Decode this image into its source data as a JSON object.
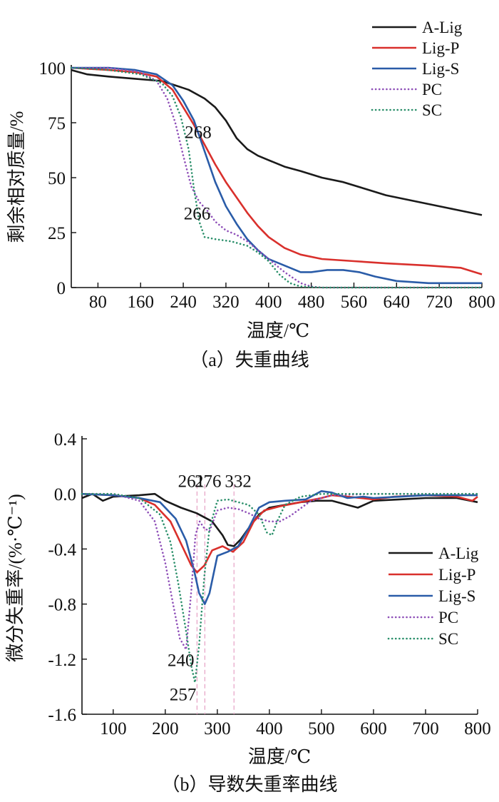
{
  "colors": {
    "A-Lig": "#1a1a1a",
    "Lig-P": "#d9302c",
    "Lig-S": "#2a5ca8",
    "PC": "#8e4fb8",
    "SC": "#2a8f6a"
  },
  "chart_data": [
    {
      "type": "line",
      "caption": "（a）失重曲线",
      "xlabel": "温度/℃",
      "ylabel": "剩余相对质量/%",
      "xlim": [
        30,
        800
      ],
      "ylim": [
        0,
        100
      ],
      "xticks": [
        80,
        160,
        240,
        320,
        400,
        480,
        560,
        640,
        720,
        800
      ],
      "yticks": [
        0,
        25,
        50,
        75,
        100
      ],
      "grid": false,
      "legend": "top-right",
      "annotations": [
        {
          "text": "268",
          "x": 268,
          "y": 68
        },
        {
          "text": "266",
          "x": 266,
          "y": 31
        }
      ],
      "series": [
        {
          "name": "A-Lig",
          "style": "solid",
          "x": [
            30,
            60,
            100,
            150,
            200,
            250,
            280,
            300,
            320,
            340,
            360,
            380,
            400,
            430,
            460,
            500,
            540,
            580,
            620,
            680,
            740,
            800
          ],
          "y": [
            99,
            97,
            96,
            95,
            94,
            90,
            86,
            82,
            76,
            68,
            63,
            60,
            58,
            55,
            53,
            50,
            48,
            45,
            42,
            39,
            36,
            33
          ]
        },
        {
          "name": "Lig-P",
          "style": "solid",
          "x": [
            30,
            100,
            150,
            190,
            220,
            240,
            260,
            280,
            300,
            320,
            340,
            360,
            380,
            400,
            430,
            460,
            500,
            560,
            620,
            700,
            760,
            800
          ],
          "y": [
            100,
            99,
            98,
            96,
            90,
            82,
            74,
            65,
            56,
            48,
            41,
            34,
            28,
            23,
            18,
            15,
            13,
            12,
            11,
            10,
            9,
            6
          ]
        },
        {
          "name": "Lig-S",
          "style": "solid",
          "x": [
            30,
            100,
            150,
            190,
            220,
            240,
            260,
            280,
            300,
            320,
            340,
            360,
            380,
            400,
            430,
            460,
            480,
            510,
            540,
            570,
            600,
            640,
            700,
            800
          ],
          "y": [
            100,
            100,
            99,
            97,
            92,
            85,
            76,
            62,
            48,
            37,
            29,
            22,
            17,
            13,
            10,
            7,
            7,
            8,
            8,
            7,
            5,
            3,
            2,
            2
          ]
        },
        {
          "name": "PC",
          "style": "dotted",
          "x": [
            30,
            100,
            160,
            190,
            210,
            225,
            240,
            255,
            270,
            285,
            300,
            320,
            340,
            360,
            380,
            400,
            430,
            460,
            480,
            500,
            600,
            800
          ],
          "y": [
            100,
            100,
            98,
            94,
            86,
            75,
            60,
            46,
            39,
            35,
            30,
            26,
            24,
            21,
            17,
            13,
            7,
            2,
            0.5,
            0,
            0,
            0
          ]
        },
        {
          "name": "SC",
          "style": "dotted",
          "x": [
            30,
            100,
            160,
            200,
            220,
            235,
            250,
            260,
            270,
            280,
            300,
            330,
            360,
            380,
            400,
            420,
            440,
            460,
            500,
            800
          ],
          "y": [
            100,
            99,
            97,
            93,
            87,
            78,
            63,
            45,
            30,
            23,
            22,
            21,
            19,
            16,
            12,
            6,
            2,
            0.5,
            0,
            0
          ]
        }
      ]
    },
    {
      "type": "line",
      "caption": "（b）导数失重率曲线",
      "xlabel": "温度/℃",
      "ylabel": "微分失重率/(%·℃⁻¹)",
      "xlim": [
        40,
        800
      ],
      "ylim": [
        -1.6,
        0.4
      ],
      "xticks": [
        100,
        200,
        300,
        400,
        500,
        600,
        700,
        800
      ],
      "yticks": [
        0.4,
        0.0,
        -0.4,
        -0.8,
        -1.2,
        -1.6
      ],
      "ytick_labels": [
        "0.4",
        "0.0",
        "-0.4",
        "-0.8",
        "-1.2",
        "-1.6"
      ],
      "grid": false,
      "legend": "right",
      "reference_lines_x": [
        261,
        276,
        332
      ],
      "annotations": [
        {
          "text": "261",
          "x": 250,
          "y": 0.05
        },
        {
          "text": "276",
          "x": 282,
          "y": 0.05
        },
        {
          "text": "332",
          "x": 340,
          "y": 0.05
        },
        {
          "text": "240",
          "x": 230,
          "y": -1.25
        },
        {
          "text": "257",
          "x": 234,
          "y": -1.5
        }
      ],
      "series": [
        {
          "name": "A-Lig",
          "style": "solid",
          "x": [
            40,
            60,
            80,
            100,
            150,
            180,
            200,
            230,
            260,
            290,
            310,
            320,
            332,
            345,
            360,
            380,
            400,
            430,
            460,
            490,
            520,
            550,
            570,
            600,
            650,
            700,
            760,
            800
          ],
          "y": [
            -0.03,
            0.0,
            -0.05,
            -0.02,
            -0.01,
            0.0,
            -0.05,
            -0.1,
            -0.14,
            -0.2,
            -0.3,
            -0.37,
            -0.38,
            -0.33,
            -0.25,
            -0.15,
            -0.1,
            -0.08,
            -0.06,
            -0.05,
            -0.05,
            -0.08,
            -0.1,
            -0.05,
            -0.04,
            -0.03,
            -0.03,
            -0.06
          ]
        },
        {
          "name": "Lig-P",
          "style": "solid",
          "x": [
            40,
            100,
            150,
            180,
            210,
            230,
            250,
            261,
            275,
            290,
            310,
            330,
            350,
            370,
            390,
            420,
            460,
            500,
            520,
            550,
            600,
            640,
            700,
            760,
            790,
            800
          ],
          "y": [
            0.0,
            -0.01,
            -0.03,
            -0.08,
            -0.2,
            -0.36,
            -0.52,
            -0.57,
            -0.52,
            -0.41,
            -0.38,
            -0.42,
            -0.35,
            -0.2,
            -0.12,
            -0.09,
            -0.06,
            -0.03,
            -0.01,
            -0.02,
            -0.04,
            -0.02,
            -0.01,
            -0.02,
            -0.05,
            -0.02
          ]
        },
        {
          "name": "Lig-S",
          "style": "solid",
          "x": [
            40,
            100,
            150,
            190,
            220,
            240,
            255,
            265,
            276,
            285,
            300,
            320,
            340,
            360,
            380,
            400,
            430,
            470,
            500,
            520,
            550,
            580,
            600,
            650,
            700,
            800
          ],
          "y": [
            0.0,
            -0.01,
            -0.03,
            -0.06,
            -0.18,
            -0.34,
            -0.55,
            -0.72,
            -0.8,
            -0.72,
            -0.45,
            -0.42,
            -0.38,
            -0.25,
            -0.1,
            -0.06,
            -0.05,
            -0.04,
            0.02,
            0.01,
            -0.03,
            -0.02,
            -0.03,
            -0.02,
            -0.01,
            -0.01
          ]
        },
        {
          "name": "PC",
          "style": "dotted",
          "x": [
            40,
            100,
            150,
            180,
            200,
            215,
            228,
            240,
            250,
            258,
            266,
            275,
            285,
            300,
            320,
            340,
            360,
            380,
            400,
            420,
            440,
            480,
            520,
            600,
            700,
            800
          ],
          "y": [
            0.0,
            0.0,
            -0.05,
            -0.2,
            -0.5,
            -0.8,
            -1.05,
            -1.13,
            -0.7,
            -0.3,
            -0.2,
            -0.25,
            -0.27,
            -0.12,
            -0.1,
            -0.11,
            -0.14,
            -0.18,
            -0.2,
            -0.2,
            -0.16,
            -0.05,
            -0.01,
            0.0,
            0.0,
            0.0
          ]
        },
        {
          "name": "SC",
          "style": "dotted",
          "x": [
            40,
            100,
            150,
            190,
            210,
            225,
            240,
            250,
            257,
            265,
            275,
            285,
            300,
            320,
            340,
            360,
            380,
            395,
            405,
            415,
            430,
            460,
            500,
            600,
            700,
            800
          ],
          "y": [
            0.0,
            0.0,
            -0.03,
            -0.15,
            -0.35,
            -0.65,
            -1.0,
            -1.25,
            -1.37,
            -1.1,
            -0.6,
            -0.25,
            -0.05,
            -0.04,
            -0.06,
            -0.08,
            -0.15,
            -0.28,
            -0.3,
            -0.2,
            -0.08,
            -0.02,
            0.0,
            0.0,
            0.0,
            0.0
          ]
        }
      ]
    }
  ]
}
